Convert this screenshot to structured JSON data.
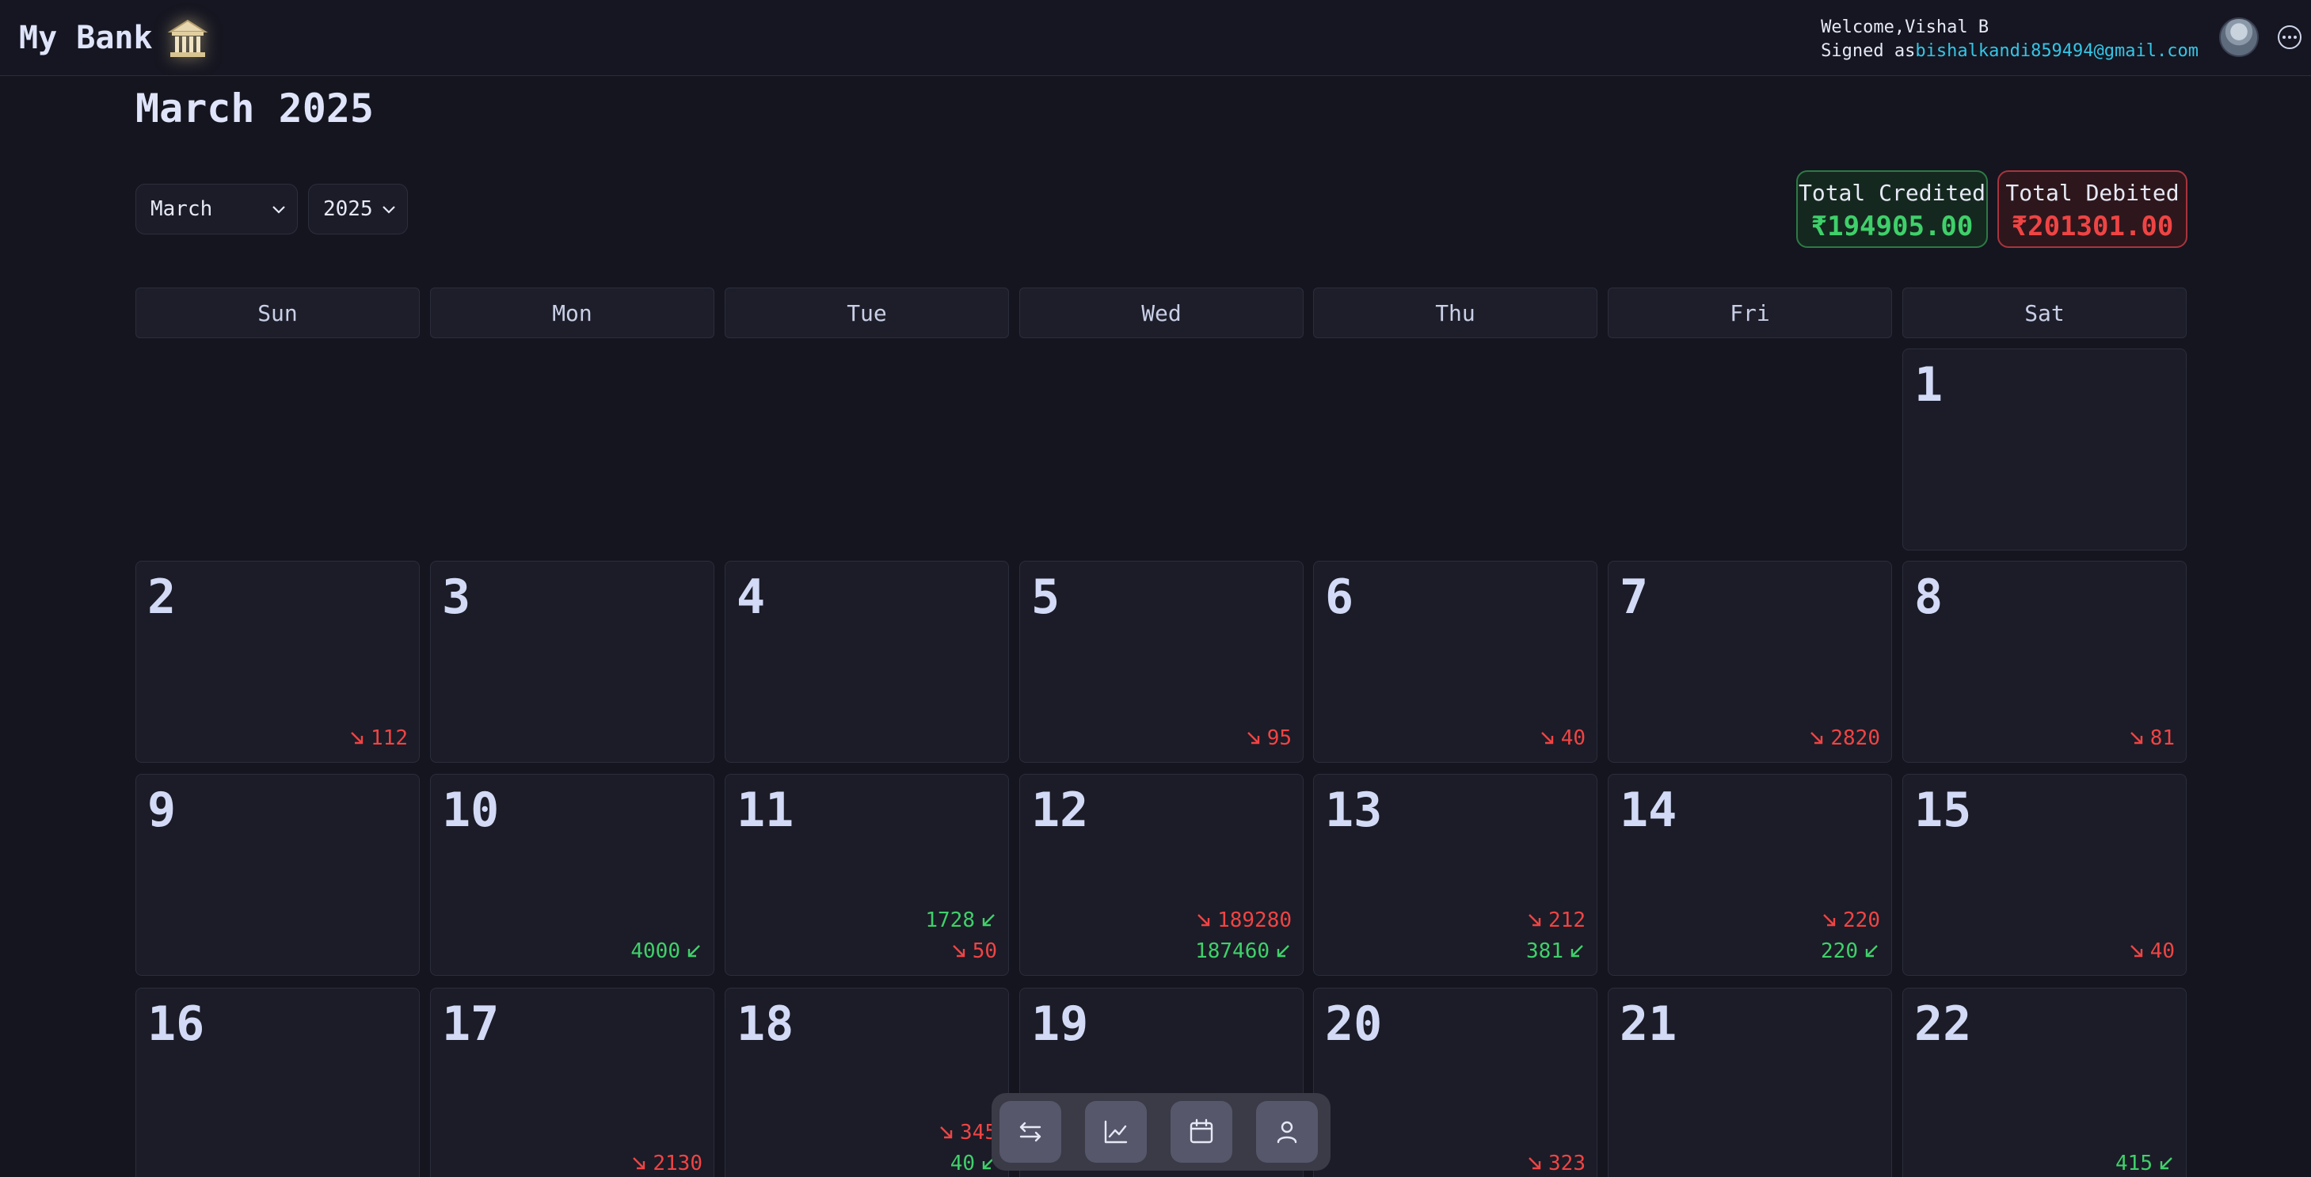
{
  "header": {
    "brand": "My Bank",
    "welcome": "Welcome,Vishal B",
    "signed_prefix": "Signed as",
    "email": "bishalkandi859494@gmail.com"
  },
  "calendar": {
    "title": "March 2025",
    "month_select": "March",
    "year_select": "2025",
    "weekdays": [
      "Sun",
      "Mon",
      "Tue",
      "Wed",
      "Thu",
      "Fri",
      "Sat"
    ],
    "totals": {
      "credited_label": "Total Credited",
      "credited_value": "₹194905.00",
      "debited_label": "Total Debited",
      "debited_value": "₹201301.00"
    },
    "days": {
      "d1": "1",
      "d2": {
        "num": "2",
        "debit": "112"
      },
      "d3": "3",
      "d4": "4",
      "d5": {
        "num": "5",
        "debit": "95"
      },
      "d6": {
        "num": "6",
        "debit": "40"
      },
      "d7": {
        "num": "7",
        "debit": "2820"
      },
      "d8": {
        "num": "8",
        "debit": "81"
      },
      "d9": "9",
      "d10": {
        "num": "10",
        "credit": "4000"
      },
      "d11": {
        "num": "11",
        "credit": "1728",
        "debit": "50"
      },
      "d12": {
        "num": "12",
        "debit": "189280",
        "credit": "187460"
      },
      "d13": {
        "num": "13",
        "debit": "212",
        "credit": "381"
      },
      "d14": {
        "num": "14",
        "debit": "220",
        "credit": "220"
      },
      "d15": {
        "num": "15",
        "debit": "40"
      },
      "d16": "16",
      "d17": {
        "num": "17",
        "debit": "2130"
      },
      "d18": {
        "num": "18",
        "debit": "345",
        "credit": "40"
      },
      "d19": "19",
      "d20": {
        "num": "20",
        "debit": "323"
      },
      "d21": "21",
      "d22": {
        "num": "22",
        "credit": "415"
      }
    }
  },
  "dock": {
    "icons": [
      "transfer-icon",
      "chart-icon",
      "calendar-icon",
      "user-icon"
    ]
  },
  "colors": {
    "background": "#14151f",
    "credit": "#3fd06a",
    "debit": "#ef4444",
    "email": "#35c5e6"
  }
}
